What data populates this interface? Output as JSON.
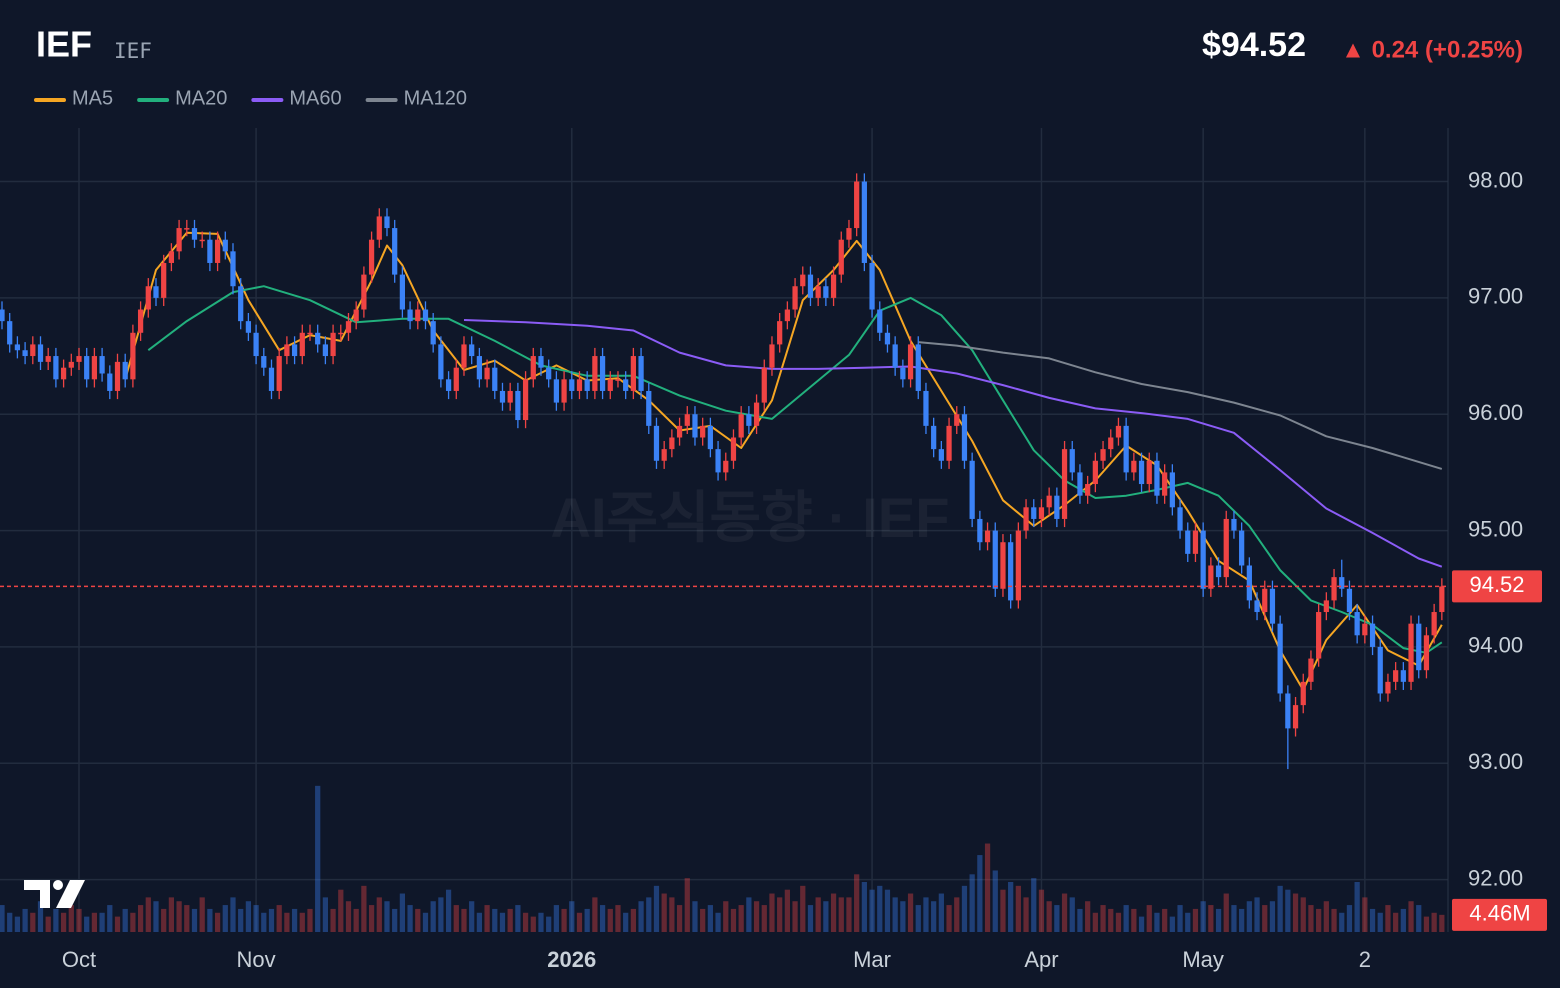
{
  "chart_data": {
    "type": "candlestick",
    "title": "IEF",
    "subtitle": "IEF",
    "price": "$94.52",
    "change": "▲ 0.24 (+0.25%)",
    "watermark": "AI주식동향 · IEF",
    "grid": true,
    "up_color": "#ef4444",
    "down_color": "#3b82f6",
    "xlim": [
      -0.26,
      187.8
    ],
    "xticks": [
      {
        "value": 10,
        "label": "Oct"
      },
      {
        "value": 33,
        "label": "Nov"
      },
      {
        "value": 74,
        "label": "2026",
        "bold": true
      },
      {
        "value": 113,
        "label": "Mar"
      },
      {
        "value": 135,
        "label": "Apr"
      },
      {
        "value": 156,
        "label": "May"
      },
      {
        "value": 177,
        "label": "2"
      }
    ],
    "ylim": [
      91.55,
      98.46
    ],
    "yticks": [
      {
        "value": 92,
        "label": "92.00"
      },
      {
        "value": 93,
        "label": "93.00"
      },
      {
        "value": 94,
        "label": "94.00"
      },
      {
        "value": 95,
        "label": "95.00"
      },
      {
        "value": 96,
        "label": "96.00"
      },
      {
        "value": 97,
        "label": "97.00"
      },
      {
        "value": 98,
        "label": "98.00"
      }
    ],
    "last_price": {
      "value": 94.52,
      "label": "94.52"
    },
    "open": [
      96.9,
      96.8,
      96.6,
      96.55,
      96.5,
      96.6,
      96.45,
      96.5,
      96.3,
      96.4,
      96.45,
      96.5,
      96.3,
      96.5,
      96.35,
      96.2,
      96.45,
      96.3,
      96.7,
      96.9,
      97.1,
      97.0,
      97.3,
      97.4,
      97.6,
      97.6,
      97.5,
      97.5,
      97.3,
      97.5,
      97.4,
      97.1,
      96.8,
      96.7,
      96.5,
      96.4,
      96.2,
      96.5,
      96.6,
      96.5,
      96.7,
      96.7,
      96.6,
      96.5,
      96.7,
      96.7,
      96.8,
      96.9,
      97.2,
      97.5,
      97.7,
      97.6,
      97.2,
      96.9,
      96.8,
      96.9,
      96.8,
      96.6,
      96.3,
      96.2,
      96.4,
      96.6,
      96.5,
      96.3,
      96.4,
      96.2,
      96.1,
      96.2,
      95.95,
      96.3,
      96.5,
      96.4,
      96.3,
      96.1,
      96.3,
      96.2,
      96.3,
      96.2,
      96.5,
      96.2,
      96.3,
      96.3,
      96.2,
      96.5,
      96.2,
      95.9,
      95.6,
      95.7,
      95.8,
      95.9,
      96.0,
      95.8,
      95.9,
      95.7,
      95.5,
      95.6,
      95.8,
      96.0,
      95.9,
      96.1,
      96.4,
      96.6,
      96.8,
      96.9,
      97.1,
      97.2,
      97.0,
      97.1,
      97.0,
      97.2,
      97.5,
      97.6,
      98.0,
      97.3,
      96.9,
      96.7,
      96.6,
      96.4,
      96.3,
      96.6,
      96.2,
      95.9,
      95.7,
      95.6,
      95.9,
      96.0,
      95.6,
      95.1,
      94.9,
      95.0,
      94.5,
      94.9,
      94.4,
      95.0,
      95.2,
      95.1,
      95.2,
      95.3,
      95.1,
      95.7,
      95.5,
      95.3,
      95.4,
      95.6,
      95.7,
      95.8,
      95.9,
      95.5,
      95.6,
      95.4,
      95.6,
      95.3,
      95.5,
      95.2,
      95.0,
      94.8,
      95.0,
      94.5,
      94.7,
      94.6,
      95.1,
      95.0,
      94.7,
      94.4,
      94.3,
      94.5,
      94.2,
      93.6,
      93.3,
      93.5,
      93.7,
      93.9,
      94.3,
      94.4,
      94.6,
      94.5,
      94.3,
      94.1,
      94.2,
      94.0,
      93.6,
      93.7,
      93.8,
      93.7,
      94.2,
      93.8,
      94.1,
      94.3
    ],
    "high": [
      96.97,
      96.87,
      96.67,
      96.62,
      96.67,
      96.67,
      96.57,
      96.57,
      96.47,
      96.52,
      96.57,
      96.57,
      96.57,
      96.57,
      96.42,
      96.52,
      96.52,
      96.77,
      96.97,
      97.17,
      97.17,
      97.37,
      97.47,
      97.67,
      97.67,
      97.67,
      97.57,
      97.57,
      97.57,
      97.57,
      97.47,
      97.17,
      96.87,
      96.77,
      96.57,
      96.47,
      96.57,
      96.67,
      96.67,
      96.77,
      96.77,
      96.77,
      96.67,
      96.77,
      96.77,
      96.87,
      96.97,
      97.27,
      97.57,
      97.77,
      97.77,
      97.67,
      97.27,
      96.97,
      96.97,
      96.97,
      96.87,
      96.67,
      96.37,
      96.47,
      96.67,
      96.67,
      96.57,
      96.47,
      96.47,
      96.27,
      96.27,
      96.27,
      96.37,
      96.57,
      96.57,
      96.47,
      96.37,
      96.37,
      96.37,
      96.37,
      96.37,
      96.57,
      96.57,
      96.37,
      96.37,
      96.37,
      96.57,
      96.57,
      96.27,
      95.97,
      95.77,
      95.87,
      95.97,
      96.07,
      96.07,
      95.97,
      95.97,
      95.77,
      95.67,
      95.87,
      96.07,
      96.07,
      96.17,
      96.47,
      96.67,
      96.87,
      96.97,
      97.17,
      97.27,
      97.27,
      97.17,
      97.17,
      97.27,
      97.57,
      97.67,
      98.07,
      98.07,
      97.37,
      96.97,
      96.77,
      96.67,
      96.47,
      96.67,
      96.67,
      96.27,
      95.97,
      95.77,
      95.97,
      96.07,
      96.07,
      95.67,
      95.17,
      95.07,
      95.07,
      94.97,
      94.97,
      95.07,
      95.27,
      95.27,
      95.27,
      95.37,
      95.37,
      95.77,
      95.77,
      95.57,
      95.47,
      95.67,
      95.77,
      95.87,
      95.97,
      95.97,
      95.67,
      95.67,
      95.67,
      95.67,
      95.57,
      95.57,
      95.27,
      95.07,
      95.07,
      95.07,
      94.77,
      94.77,
      95.17,
      95.17,
      95.07,
      94.77,
      94.47,
      94.57,
      94.57,
      94.27,
      93.67,
      93.57,
      93.77,
      93.97,
      94.37,
      94.47,
      94.67,
      94.75,
      94.57,
      94.37,
      94.27,
      94.27,
      94.07,
      93.77,
      93.87,
      93.87,
      94.27,
      94.27,
      94.17,
      94.37,
      94.59
    ],
    "low": [
      96.73,
      96.53,
      96.48,
      96.43,
      96.43,
      96.38,
      96.38,
      96.23,
      96.23,
      96.33,
      96.38,
      96.23,
      96.23,
      96.28,
      96.13,
      96.13,
      96.23,
      96.23,
      96.63,
      96.83,
      96.93,
      96.93,
      97.23,
      97.33,
      97.53,
      97.43,
      97.43,
      97.23,
      97.23,
      97.33,
      97.03,
      96.73,
      96.63,
      96.43,
      96.33,
      96.13,
      96.13,
      96.43,
      96.43,
      96.43,
      96.63,
      96.53,
      96.43,
      96.43,
      96.63,
      96.63,
      96.73,
      96.83,
      97.13,
      97.43,
      97.53,
      97.13,
      96.83,
      96.73,
      96.73,
      96.73,
      96.53,
      96.23,
      96.13,
      96.13,
      96.33,
      96.43,
      96.23,
      96.23,
      96.13,
      96.03,
      96.03,
      95.88,
      95.88,
      96.23,
      96.33,
      96.23,
      96.03,
      96.03,
      96.13,
      96.13,
      96.13,
      96.13,
      96.13,
      96.13,
      96.23,
      96.13,
      96.13,
      96.13,
      95.83,
      95.53,
      95.53,
      95.63,
      95.73,
      95.83,
      95.73,
      95.73,
      95.63,
      95.43,
      95.43,
      95.53,
      95.73,
      95.83,
      95.83,
      96.03,
      96.33,
      96.53,
      96.73,
      96.83,
      97.03,
      96.93,
      96.93,
      96.93,
      96.93,
      97.13,
      97.43,
      97.53,
      97.23,
      96.83,
      96.63,
      96.53,
      96.33,
      96.23,
      96.23,
      96.13,
      95.83,
      95.63,
      95.53,
      95.53,
      95.83,
      95.53,
      95.03,
      94.83,
      94.83,
      94.43,
      94.43,
      94.33,
      94.33,
      94.93,
      95.03,
      95.03,
      95.13,
      95.03,
      95.03,
      95.43,
      95.23,
      95.23,
      95.33,
      95.53,
      95.63,
      95.73,
      95.43,
      95.43,
      95.33,
      95.33,
      95.23,
      95.23,
      95.13,
      94.93,
      94.73,
      94.73,
      94.43,
      94.43,
      94.53,
      94.53,
      94.93,
      94.63,
      94.33,
      94.23,
      94.23,
      94.13,
      93.53,
      92.95,
      93.23,
      93.43,
      93.63,
      93.83,
      94.23,
      94.33,
      94.43,
      94.23,
      94.03,
      94.03,
      93.93,
      93.53,
      93.53,
      93.63,
      93.63,
      93.63,
      93.73,
      93.73,
      94.03,
      94.23
    ],
    "close": [
      96.8,
      96.6,
      96.55,
      96.5,
      96.6,
      96.45,
      96.5,
      96.3,
      96.4,
      96.45,
      96.5,
      96.3,
      96.5,
      96.35,
      96.2,
      96.45,
      96.3,
      96.7,
      96.9,
      97.1,
      97.0,
      97.3,
      97.4,
      97.6,
      97.6,
      97.5,
      97.5,
      97.3,
      97.5,
      97.4,
      97.1,
      96.8,
      96.7,
      96.5,
      96.4,
      96.2,
      96.5,
      96.6,
      96.5,
      96.7,
      96.7,
      96.6,
      96.5,
      96.7,
      96.7,
      96.8,
      96.9,
      97.2,
      97.5,
      97.7,
      97.6,
      97.2,
      96.9,
      96.8,
      96.9,
      96.8,
      96.6,
      96.3,
      96.2,
      96.4,
      96.6,
      96.5,
      96.3,
      96.4,
      96.2,
      96.1,
      96.2,
      95.95,
      96.3,
      96.5,
      96.4,
      96.3,
      96.1,
      96.3,
      96.2,
      96.3,
      96.2,
      96.5,
      96.2,
      96.3,
      96.3,
      96.2,
      96.5,
      96.2,
      95.9,
      95.6,
      95.7,
      95.8,
      95.9,
      96.0,
      95.8,
      95.9,
      95.7,
      95.5,
      95.6,
      95.8,
      96.0,
      95.9,
      96.1,
      96.4,
      96.6,
      96.8,
      96.9,
      97.1,
      97.2,
      97.0,
      97.1,
      97.0,
      97.2,
      97.5,
      97.6,
      98.0,
      97.3,
      96.9,
      96.7,
      96.6,
      96.4,
      96.3,
      96.6,
      96.2,
      95.9,
      95.7,
      95.6,
      95.9,
      96.0,
      95.6,
      95.1,
      94.9,
      95.0,
      94.5,
      94.9,
      94.4,
      95.0,
      95.2,
      95.1,
      95.2,
      95.3,
      95.1,
      95.7,
      95.5,
      95.3,
      95.4,
      95.6,
      95.7,
      95.8,
      95.9,
      95.5,
      95.6,
      95.4,
      95.6,
      95.3,
      95.5,
      95.2,
      95.0,
      94.8,
      95.0,
      94.5,
      94.7,
      94.6,
      95.1,
      95.0,
      94.7,
      94.4,
      94.3,
      94.5,
      94.2,
      93.6,
      93.3,
      93.5,
      93.7,
      93.9,
      94.3,
      94.4,
      94.6,
      94.5,
      94.3,
      94.1,
      94.2,
      94.0,
      93.6,
      93.7,
      93.8,
      93.7,
      94.2,
      93.8,
      94.1,
      94.3,
      94.52
    ],
    "volume": {
      "ylim": [
        0,
        52
      ],
      "last_label": "4.46M",
      "values": [
        7,
        5,
        4,
        6,
        5,
        8,
        4,
        6,
        5,
        7,
        6,
        4,
        5,
        5,
        7,
        4,
        6,
        5,
        7,
        9,
        8,
        6,
        9,
        8,
        7,
        6,
        9,
        6,
        5,
        7,
        9,
        6,
        8,
        7,
        5,
        6,
        7,
        5,
        6,
        5,
        6,
        38,
        9,
        6,
        11,
        8,
        6,
        12,
        7,
        9,
        8,
        6,
        10,
        7,
        6,
        5,
        8,
        9,
        11,
        7,
        6,
        8,
        5,
        7,
        6,
        5,
        6,
        7,
        5,
        4,
        5,
        4,
        7,
        6,
        8,
        5,
        6,
        9,
        7,
        6,
        7,
        5,
        6,
        8,
        9,
        12,
        10,
        9,
        7,
        14,
        8,
        6,
        7,
        5,
        8,
        6,
        7,
        9,
        8,
        7,
        10,
        9,
        11,
        8,
        12,
        7,
        9,
        8,
        10,
        9,
        9,
        15,
        13,
        11,
        12,
        11,
        9,
        8,
        10,
        7,
        9,
        8,
        10,
        7,
        9,
        12,
        15,
        20,
        23,
        16,
        11,
        13,
        12,
        9,
        14,
        11,
        8,
        7,
        10,
        9,
        6,
        8,
        5,
        7,
        6,
        5,
        7,
        6,
        4,
        7,
        5,
        6,
        4,
        7,
        5,
        6,
        8,
        7,
        6,
        10,
        7,
        6,
        8,
        9,
        7,
        8,
        12,
        11,
        10,
        9,
        7,
        6,
        8,
        6,
        5,
        7,
        13,
        9,
        6,
        5,
        7,
        5,
        6,
        8,
        7,
        4,
        5,
        4.46
      ]
    },
    "series": [
      {
        "name": "MA5",
        "color": "#f5a623",
        "x": [
          16,
          20,
          24,
          28,
          32,
          36,
          40,
          44,
          48,
          50,
          52,
          56,
          60,
          64,
          68,
          72,
          76,
          80,
          84,
          88,
          92,
          96,
          100,
          104,
          108,
          111,
          114,
          118,
          122,
          126,
          130,
          134,
          138,
          142,
          146,
          150,
          154,
          158,
          162,
          166,
          169,
          172,
          176,
          180,
          184,
          187
        ],
        "values": [
          96.3,
          97.24,
          97.56,
          97.55,
          96.98,
          96.55,
          96.68,
          96.63,
          97.15,
          97.45,
          97.28,
          96.72,
          96.38,
          96.46,
          96.29,
          96.42,
          96.29,
          96.31,
          96.12,
          95.86,
          95.9,
          95.71,
          96.12,
          96.98,
          97.24,
          97.49,
          97.24,
          96.63,
          96.2,
          95.77,
          95.26,
          95.04,
          95.22,
          95.43,
          95.73,
          95.56,
          95.17,
          94.74,
          94.57,
          93.97,
          93.63,
          94.06,
          94.36,
          93.97,
          93.84,
          94.19
        ]
      },
      {
        "name": "MA20",
        "color": "#22b07d",
        "x": [
          19,
          24,
          30,
          34,
          40,
          46,
          52,
          58,
          64,
          70,
          76,
          82,
          88,
          94,
          100,
          106,
          110,
          114,
          118,
          122,
          126,
          130,
          134,
          138,
          142,
          146,
          150,
          154,
          158,
          162,
          166,
          170,
          174,
          178,
          182,
          185,
          187
        ],
        "values": [
          96.55,
          96.8,
          97.05,
          97.1,
          96.98,
          96.79,
          96.82,
          96.82,
          96.63,
          96.42,
          96.33,
          96.33,
          96.16,
          96.03,
          95.96,
          96.29,
          96.51,
          96.89,
          97.0,
          96.85,
          96.55,
          96.12,
          95.69,
          95.43,
          95.28,
          95.3,
          95.35,
          95.41,
          95.3,
          95.04,
          94.66,
          94.4,
          94.3,
          94.19,
          93.99,
          93.95,
          94.04
        ]
      },
      {
        "name": "MA60",
        "color": "#8b5cf6",
        "x": [
          60,
          68,
          76,
          82,
          88,
          94,
          100,
          106,
          112,
          118,
          124,
          130,
          136,
          142,
          148,
          154,
          160,
          166,
          172,
          178,
          184,
          187
        ],
        "values": [
          96.81,
          96.79,
          96.76,
          96.72,
          96.53,
          96.42,
          96.39,
          96.39,
          96.4,
          96.41,
          96.35,
          96.25,
          96.14,
          96.05,
          96.01,
          95.96,
          95.84,
          95.52,
          95.19,
          94.98,
          94.76,
          94.69
        ]
      },
      {
        "name": "MA120",
        "color": "#7d8590",
        "x": [
          119,
          124,
          130,
          136,
          142,
          148,
          154,
          160,
          166,
          172,
          178,
          184,
          187
        ],
        "values": [
          96.62,
          96.59,
          96.53,
          96.48,
          96.36,
          96.26,
          96.19,
          96.1,
          95.99,
          95.81,
          95.71,
          95.59,
          95.53
        ]
      }
    ]
  }
}
